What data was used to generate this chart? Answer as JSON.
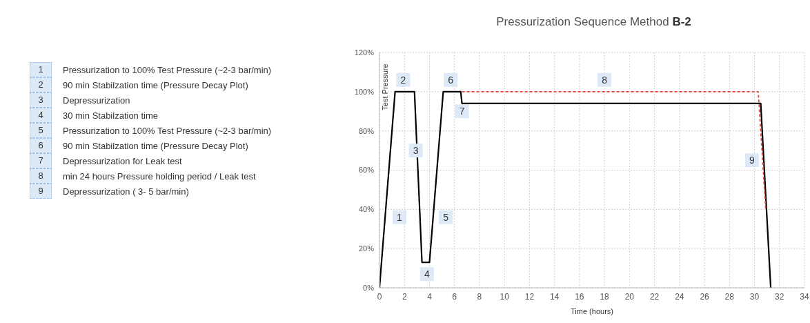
{
  "chart_data": {
    "type": "line",
    "title": "Pressurization Sequence Method B-2",
    "xlabel": "Time (hours)",
    "ylabel": "Test Pressure",
    "series": [
      {
        "color": "#000000",
        "line_style": "solid",
        "x": [
          0,
          1.25,
          2.8,
          3.4,
          4.0,
          5.1,
          6.5,
          6.6,
          30.5,
          31.3
        ],
        "values": [
          0,
          100,
          100,
          13,
          13,
          100,
          100,
          94,
          94,
          0
        ]
      },
      {
        "color": "#e8433a",
        "line_style": "dashed",
        "x": [
          6.6,
          30.3,
          30.9
        ],
        "values": [
          100,
          100,
          40
        ]
      }
    ],
    "xlim": [
      0,
      34
    ],
    "xticks": [
      0,
      2,
      4,
      6,
      8,
      10,
      12,
      14,
      16,
      18,
      20,
      22,
      24,
      26,
      28,
      30,
      32,
      34
    ],
    "ylim": [
      0,
      120
    ],
    "yticks": [
      {
        "value": 0,
        "label": "0%"
      },
      {
        "value": 20,
        "label": "20%"
      },
      {
        "value": 40,
        "label": "40%"
      },
      {
        "value": 60,
        "label": "60%"
      },
      {
        "value": 80,
        "label": "80%"
      },
      {
        "value": 100,
        "label": "100%"
      },
      {
        "value": 120,
        "label": "120%"
      }
    ],
    "grid": true,
    "marker": "none",
    "annotations": [
      {
        "text": "1",
        "x": 1.6,
        "y": 36
      },
      {
        "text": "2",
        "x": 1.9,
        "y": 106
      },
      {
        "text": "3",
        "x": 2.9,
        "y": 70
      },
      {
        "text": "4",
        "x": 3.8,
        "y": 7
      },
      {
        "text": "5",
        "x": 5.3,
        "y": 36
      },
      {
        "text": "6",
        "x": 5.7,
        "y": 106
      },
      {
        "text": "7",
        "x": 6.6,
        "y": 90
      },
      {
        "text": "8",
        "x": 18,
        "y": 106
      },
      {
        "text": "9",
        "x": 29.8,
        "y": 65
      },
      "Pressurization to 100% Test Pressure (~2-3 bar/min)",
      "90 min Stabilzation time (Pressure Decay Plot)",
      "Depressurization",
      "30 min Stabilzation time",
      "Pressurization to 100% Test Pressure (~2-3 bar/min)",
      "90 min Stabilzation time (Pressure Decay Plot)",
      "Depressurization for Leak test",
      "min 24 hours Pressure holding period / Leak test",
      "Depressurization ( 3- 5 bar/min)"
    ]
  }
}
